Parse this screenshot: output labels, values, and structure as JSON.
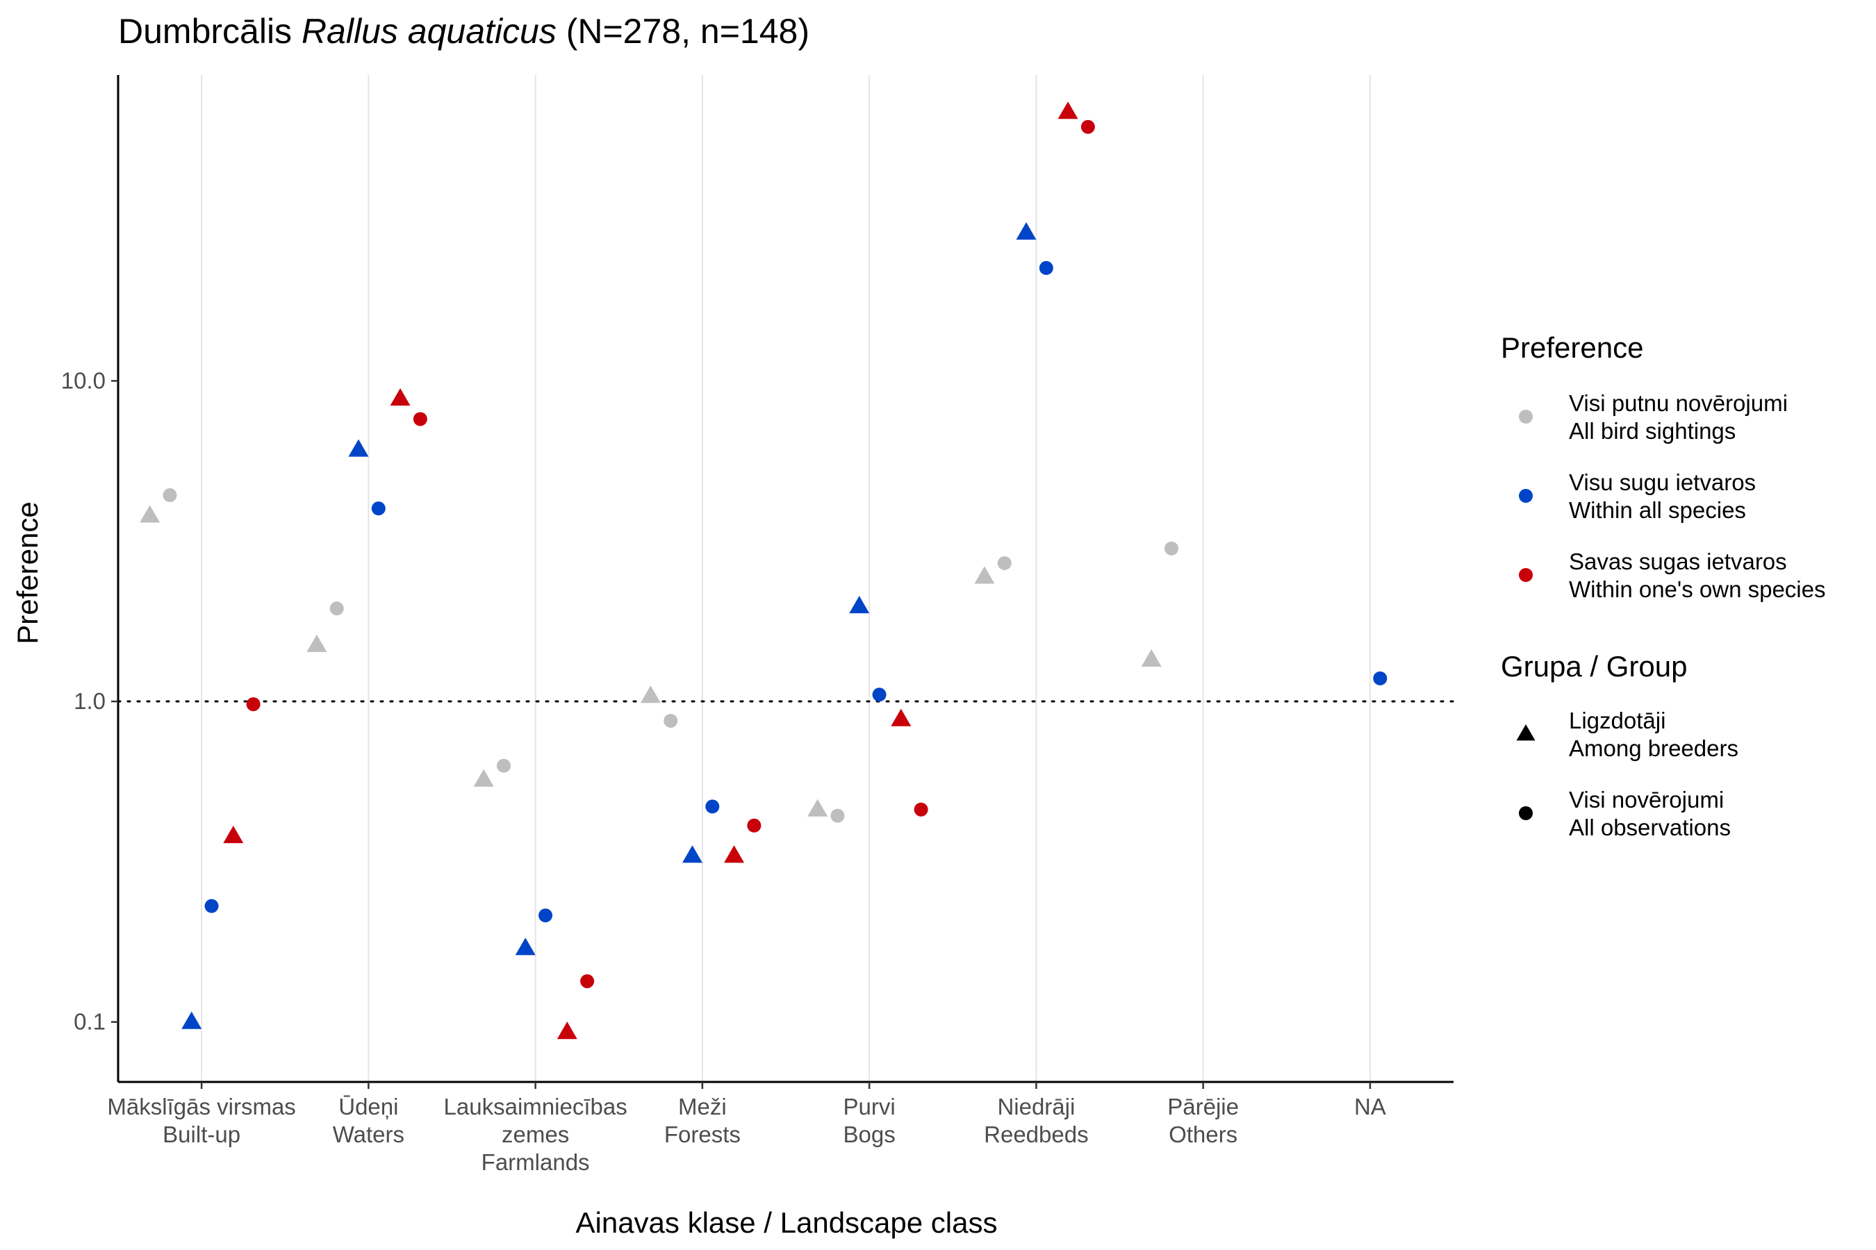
{
  "chart_data": {
    "type": "scatter",
    "title": {
      "prefix": "Dumbrcālis ",
      "italic": "Rallus aquaticus",
      "suffix": " (N=278, n=148)"
    },
    "xlabel": "Ainavas klase / Landscape class",
    "ylabel": "Preference",
    "y_scale": "log10",
    "ylim": [
      0.065,
      90
    ],
    "reference_line": 1.0,
    "grid": "vertical-major",
    "categories": [
      {
        "id": "builtup",
        "lines": [
          "Mākslīgās virsmas",
          "Built-up"
        ]
      },
      {
        "id": "waters",
        "lines": [
          "Ūdeņi",
          "Waters"
        ]
      },
      {
        "id": "farmlands",
        "lines": [
          "Lauksaimniecības",
          "zemes",
          "Farmlands"
        ]
      },
      {
        "id": "forests",
        "lines": [
          "Meži",
          "Forests"
        ]
      },
      {
        "id": "bogs",
        "lines": [
          "Purvi",
          "Bogs"
        ]
      },
      {
        "id": "reedbeds",
        "lines": [
          "Niedrāji",
          "Reedbeds"
        ]
      },
      {
        "id": "others",
        "lines": [
          "Pārējie",
          "Others"
        ]
      },
      {
        "id": "na",
        "lines": [
          "NA"
        ]
      }
    ],
    "y_ticks": [
      {
        "value": 0.1,
        "label": "0.1"
      },
      {
        "value": 1.0,
        "label": "1.0"
      },
      {
        "value": 10.0,
        "label": "10.0"
      }
    ],
    "series": [
      {
        "key": "all_birds",
        "label_lines": [
          "Visi putnu novērojumi",
          "All bird sightings"
        ],
        "color": "#BEBEBE",
        "offsets": {
          "breeders": -0.31,
          "all": -0.19
        },
        "points": [
          {
            "category": 0,
            "group": "breeders",
            "y": 3.8
          },
          {
            "category": 0,
            "group": "all",
            "y": 4.4
          },
          {
            "category": 1,
            "group": "breeders",
            "y": 1.5
          },
          {
            "category": 1,
            "group": "all",
            "y": 1.95
          },
          {
            "category": 2,
            "group": "breeders",
            "y": 0.57
          },
          {
            "category": 2,
            "group": "all",
            "y": 0.63
          },
          {
            "category": 3,
            "group": "breeders",
            "y": 1.04
          },
          {
            "category": 3,
            "group": "all",
            "y": 0.87
          },
          {
            "category": 4,
            "group": "breeders",
            "y": 0.46
          },
          {
            "category": 4,
            "group": "all",
            "y": 0.44
          },
          {
            "category": 5,
            "group": "breeders",
            "y": 2.45
          },
          {
            "category": 5,
            "group": "all",
            "y": 2.7
          },
          {
            "category": 6,
            "group": "breeders",
            "y": 1.35
          },
          {
            "category": 6,
            "group": "all",
            "y": 3.0
          }
        ]
      },
      {
        "key": "all_species",
        "label_lines": [
          "Visu sugu ietvaros",
          "Within all species"
        ],
        "color": "#0045C8",
        "offsets": {
          "breeders": -0.06,
          "all": 0.06
        },
        "points": [
          {
            "category": 0,
            "group": "breeders",
            "y": 0.1
          },
          {
            "category": 0,
            "group": "all",
            "y": 0.23
          },
          {
            "category": 1,
            "group": "breeders",
            "y": 6.1
          },
          {
            "category": 1,
            "group": "all",
            "y": 4.0
          },
          {
            "category": 2,
            "group": "breeders",
            "y": 0.17
          },
          {
            "category": 2,
            "group": "all",
            "y": 0.215
          },
          {
            "category": 3,
            "group": "breeders",
            "y": 0.33
          },
          {
            "category": 3,
            "group": "all",
            "y": 0.47
          },
          {
            "category": 4,
            "group": "breeders",
            "y": 1.98
          },
          {
            "category": 4,
            "group": "all",
            "y": 1.05
          },
          {
            "category": 5,
            "group": "breeders",
            "y": 29.0
          },
          {
            "category": 5,
            "group": "all",
            "y": 22.5
          },
          {
            "category": 7,
            "group": "all",
            "y": 1.18
          }
        ]
      },
      {
        "key": "own_species",
        "label_lines": [
          "Savas sugas ietvaros",
          "Within one's own species"
        ],
        "color": "#C8000A",
        "offsets": {
          "breeders": 0.19,
          "all": 0.31
        },
        "points": [
          {
            "category": 0,
            "group": "breeders",
            "y": 0.38
          },
          {
            "category": 0,
            "group": "all",
            "y": 0.98
          },
          {
            "category": 1,
            "group": "breeders",
            "y": 8.8
          },
          {
            "category": 1,
            "group": "all",
            "y": 7.6
          },
          {
            "category": 2,
            "group": "breeders",
            "y": 0.093
          },
          {
            "category": 2,
            "group": "all",
            "y": 0.134
          },
          {
            "category": 3,
            "group": "breeders",
            "y": 0.33
          },
          {
            "category": 3,
            "group": "all",
            "y": 0.41
          },
          {
            "category": 4,
            "group": "breeders",
            "y": 0.88
          },
          {
            "category": 4,
            "group": "all",
            "y": 0.46
          },
          {
            "category": 5,
            "group": "breeders",
            "y": 69.0
          },
          {
            "category": 5,
            "group": "all",
            "y": 62.0
          }
        ]
      }
    ],
    "legend": {
      "position": "right",
      "color_title": "Preference",
      "shape_title": "Grupa / Group",
      "shapes": [
        {
          "key": "breeders",
          "shape": "triangle",
          "label_lines": [
            "Ligzdotāji",
            "Among breeders"
          ]
        },
        {
          "key": "all",
          "shape": "circle",
          "label_lines": [
            "Visi novērojumi",
            "All observations"
          ]
        }
      ]
    }
  }
}
